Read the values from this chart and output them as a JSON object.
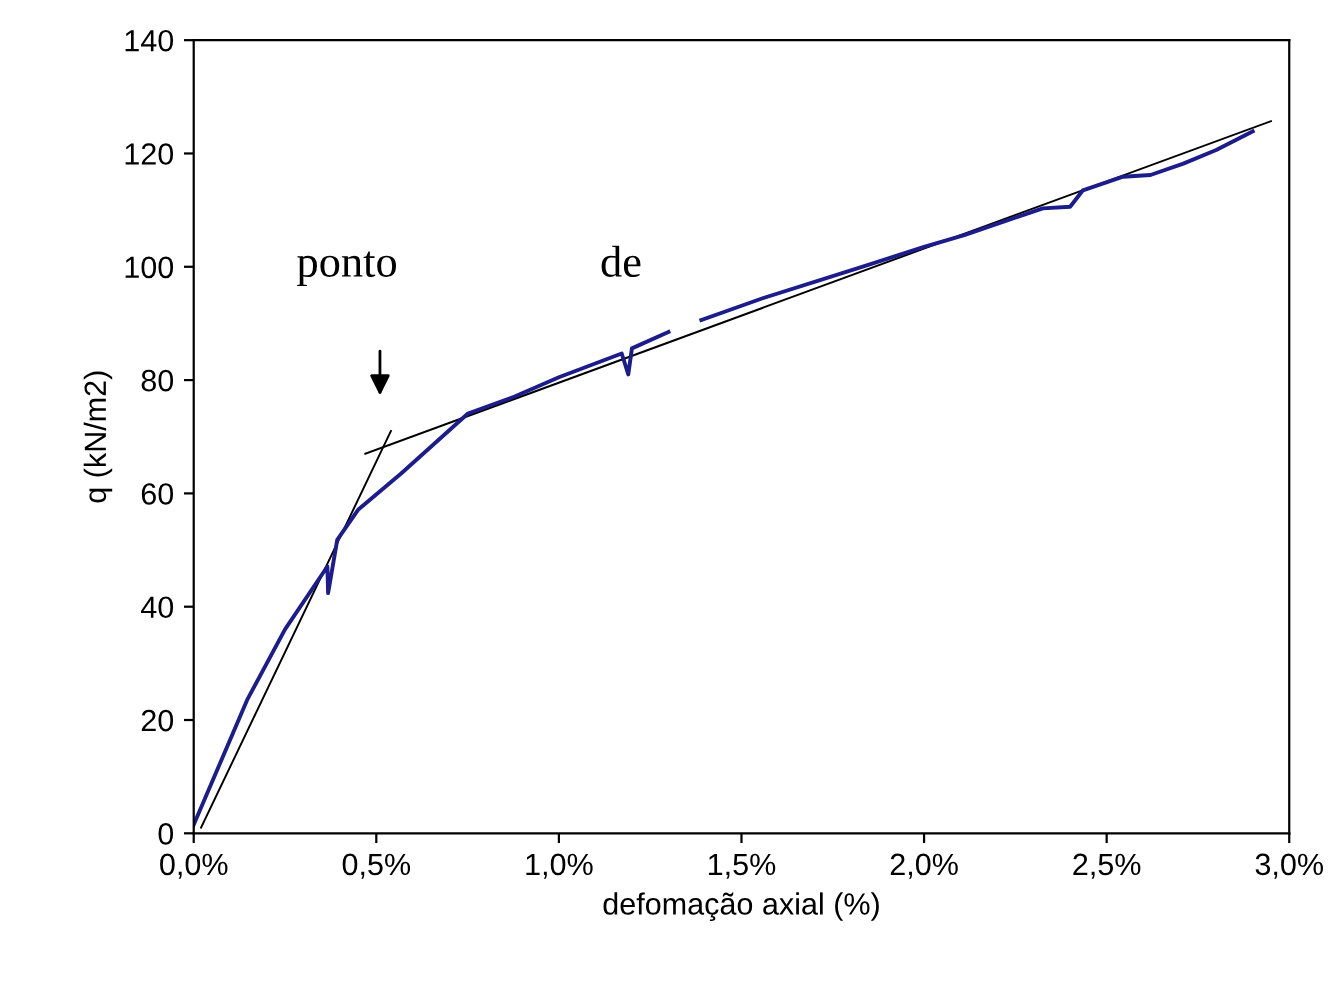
{
  "chart_data": {
    "type": "line",
    "xlabel": "defomação axial (%)",
    "ylabel": "q (kN/m2)",
    "xlim": [
      0,
      3
    ],
    "ylim": [
      0,
      140
    ],
    "xticks": [
      {
        "value": 0,
        "label": "0,0%"
      },
      {
        "value": 0.5,
        "label": "0,5%"
      },
      {
        "value": 1,
        "label": "1,0%"
      },
      {
        "value": 1.5,
        "label": "1,5%"
      },
      {
        "value": 2,
        "label": "2,0%"
      },
      {
        "value": 2.5,
        "label": "2,5%"
      },
      {
        "value": 3,
        "label": "3,0%"
      }
    ],
    "yticks": [
      0,
      20,
      40,
      60,
      80,
      100,
      120,
      140
    ],
    "grid": false,
    "legend": false,
    "marker": "none",
    "line_style": "solid",
    "series": [
      {
        "color": "#000000",
        "x": [
          0.02,
          0.54
        ],
        "values": [
          1,
          71
        ]
      },
      {
        "color": "#000000",
        "x": [
          0.47,
          2.95
        ],
        "values": [
          67,
          125.7
        ]
      },
      {
        "color": "#1c1c8c",
        "x": [
          0,
          0.146,
          0.25,
          0.366,
          0.368,
          0.393,
          0.45,
          0.568,
          0.751,
          0.879,
          1.0,
          1.172,
          1.19,
          1.2,
          1.3,
          1.35,
          1.39,
          1.556,
          1.83,
          2.0,
          2.11,
          2.325,
          2.4,
          2.435,
          2.545,
          2.62,
          2.71,
          2.8,
          2.9
        ],
        "values": [
          1.5,
          23.5,
          36,
          47.1,
          42.4,
          51.8,
          57.1,
          63.5,
          74.1,
          77.1,
          80.5,
          84.7,
          81.0,
          85.6,
          88.5,
          null,
          90.6,
          94.4,
          100,
          103.5,
          105.6,
          110.3,
          110.6,
          113.5,
          115.9,
          116.2,
          118.2,
          120.6,
          123.9
        ]
      }
    ],
    "annotations": [
      "ponto",
      "de"
    ]
  }
}
